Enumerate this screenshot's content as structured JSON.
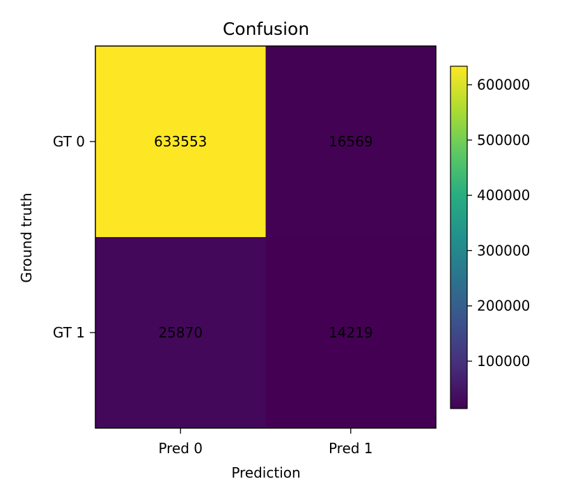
{
  "chart_data": {
    "type": "heatmap",
    "title": "Confusion",
    "xlabel": "Prediction",
    "ylabel": "Ground truth",
    "x_categories": [
      "Pred 0",
      "Pred 1"
    ],
    "y_categories": [
      "GT 0",
      "GT 1"
    ],
    "values": [
      [
        633553,
        16569
      ],
      [
        25870,
        14219
      ]
    ],
    "value_labels": [
      [
        "633553",
        "16569"
      ],
      [
        "25870",
        "14219"
      ]
    ],
    "colormap": "viridis",
    "colorbar": {
      "min": 14219,
      "max": 633553,
      "ticks": [
        100000,
        200000,
        300000,
        400000,
        500000,
        600000
      ],
      "tick_labels": [
        "100000",
        "200000",
        "300000",
        "400000",
        "500000",
        "600000"
      ]
    },
    "grid": false
  }
}
